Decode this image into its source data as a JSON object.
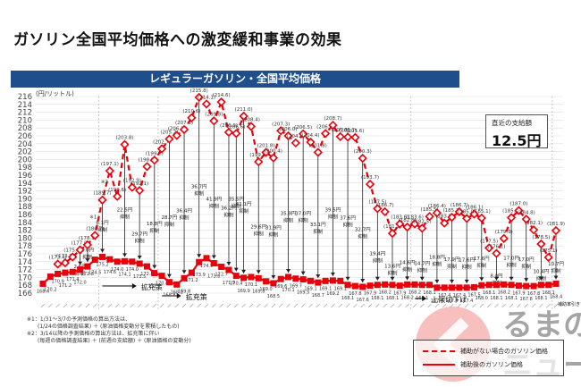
{
  "page": {
    "title": "ガソリン全国平均価格への激変緩和事業の効果",
    "banner": "レギュラーガソリン・全国平均価格"
  },
  "supply_box": {
    "label": "直近の支給額",
    "value": "12.5円"
  },
  "notes": [
    "※1：1/31～3/7の予測価格の算出方法は、",
    "　　(1/24の価格調査結果) ＋ (原油価格変動分を累積したもの)",
    "※2：3/14以降の予測価格の算出方法は、拡充策に伴い",
    "　　(毎週の価格調査結果) ＋ (前週の支給額) ＋ (原油価格の変動分)"
  ],
  "legend": {
    "without_subsidy": "補助がない場合のガソリン価格",
    "with_subsidy": "補助後のガソリン価格"
  },
  "annotations": {
    "expansion_1": "拡充策",
    "expansion_2": "拡充策",
    "cap_lowered": "上限切下げ",
    "end_note": "補助率引き下げ",
    "note_mark_1": "※1",
    "note_mark_2": "※2"
  },
  "watermark": "くるまのニュース",
  "chart_data": {
    "type": "line",
    "title": "レギュラーガソリン・全国平均価格",
    "ylabel": "(円/リットル)",
    "xlabel": "",
    "ylim": [
      166,
      216
    ],
    "yticks": [
      166,
      168,
      170,
      172,
      174,
      176,
      178,
      180,
      182,
      184,
      186,
      188,
      190,
      192,
      194,
      196,
      198,
      200,
      202,
      204,
      206,
      208,
      210,
      212,
      214,
      216
    ],
    "grid": true,
    "legend_position": "bottom-right",
    "series": [
      {
        "name": "補助がない場合のガソリン価格",
        "style": "dashed",
        "color": "#e8000b",
        "values": [
          null,
          null,
          173.4,
          173.7,
          175.2,
          177.0,
          178.3,
          180.7,
          189.7,
          197.1,
          190.6,
          203.8,
          192.9,
          192.1,
          198.2,
          199.8,
          202.7,
          205.2,
          206.1,
          207.6,
          210.6,
          215.8,
          214.1,
          209.8,
          214.6,
          206.9,
          206.6,
          211.0,
          208.4,
          199.4,
          201.8,
          200.4,
          207.3,
          206.0,
          204.2,
          206.5,
          204.4,
          201.8,
          206.6,
          208.7,
          205.8,
          205.7,
          205.6,
          200.3,
          193.7,
          187.5,
          186.7,
          181.2,
          183.6,
          182.8,
          183.6,
          182.5,
          185.5,
          186.4,
          183.8,
          185.3,
          186.7,
          185.0,
          186.1,
          185.1,
          177.5,
          176.1,
          179.9,
          185.2,
          187.0,
          184.8,
          182.1,
          178.5,
          175.1,
          181.9
        ]
      },
      {
        "name": "補助後のガソリン価格",
        "style": "solid",
        "color": "#e8000b",
        "values": [
          168.4,
          170.2,
          170.9,
          171.2,
          171.4,
          172.0,
          172.8,
          174.5,
          175.2,
          174.6,
          174.0,
          174.1,
          174.0,
          173.5,
          172.8,
          171.1,
          170.4,
          168.8,
          168.2,
          169.8,
          171.2,
          173.9,
          174.9,
          173.6,
          172.7,
          171.9,
          170.4,
          169.9,
          170.1,
          169.8,
          169.0,
          168.5,
          169.6,
          170.1,
          169.7,
          169.5,
          169.1,
          168.7,
          169.1,
          169.2,
          169.1,
          168.1,
          167.8,
          167.6,
          167.9,
          168.1,
          168.2,
          168.1,
          167.9,
          168.2,
          168.2,
          168.1,
          168.1,
          167.4,
          167.4,
          167.4,
          167.4,
          167.4,
          167.5,
          168.0,
          168.1,
          168.1,
          168.2,
          168.1,
          167.9,
          167.8,
          167.8,
          168.1,
          168.1,
          168.4
        ]
      }
    ],
    "subsidy_labels": [
      {
        "index": 8,
        "text": "6.1円\n抑制"
      },
      {
        "index": 6,
        "text": "5.0円\n抑制"
      },
      {
        "index": 5,
        "text": "2.5円\n抑制"
      },
      {
        "index": 11,
        "text": "22.5円\n抑制"
      },
      {
        "index": 13,
        "text": "29.7円\n抑制"
      },
      {
        "index": 15,
        "text": "18.8円\n抑制"
      },
      {
        "index": 17,
        "text": "28.7円\n抑制"
      },
      {
        "index": 19,
        "text": "36.4円\n抑制"
      },
      {
        "index": 21,
        "text": "36.7円\n抑制"
      },
      {
        "index": 23,
        "text": "41.9円\n抑制"
      },
      {
        "index": 25,
        "text": "36.2円\n抑制"
      },
      {
        "index": 26,
        "text": "35.5円\n抑制"
      },
      {
        "index": 27,
        "text": "41.1円\n抑制"
      },
      {
        "index": 29,
        "text": "29.6円\n抑制"
      },
      {
        "index": 31,
        "text": "31.9円\n抑制"
      },
      {
        "index": 33,
        "text": "35.9円\n抑制"
      },
      {
        "index": 35,
        "text": "37.0円\n抑制"
      },
      {
        "index": 37,
        "text": "33.1円\n抑制"
      },
      {
        "index": 39,
        "text": "39.5円\n抑制"
      },
      {
        "index": 41,
        "text": "37.6円\n抑制"
      },
      {
        "index": 43,
        "text": "32.7円\n抑制"
      },
      {
        "index": 45,
        "text": "19.4円\n抑制"
      },
      {
        "index": 47,
        "text": "13.6円\n抑制"
      },
      {
        "index": 49,
        "text": "14.6円\n抑制"
      },
      {
        "index": 51,
        "text": "14.7円\n抑制"
      },
      {
        "index": 53,
        "text": "18.8円\n抑制"
      },
      {
        "index": 55,
        "text": "17.9円\n抑制"
      },
      {
        "index": 57,
        "text": "17.6円\n抑制"
      },
      {
        "index": 59,
        "text": "17.6円\n抑制"
      },
      {
        "index": 61,
        "text": "8.0円\n抑制"
      },
      {
        "index": 63,
        "text": "17.0円\n抑制"
      },
      {
        "index": 65,
        "text": "17.0円\n抑制"
      },
      {
        "index": 67,
        "text": "10.4円\n抑制"
      },
      {
        "index": 69,
        "text": "10.7円\n抑制"
      }
    ]
  }
}
